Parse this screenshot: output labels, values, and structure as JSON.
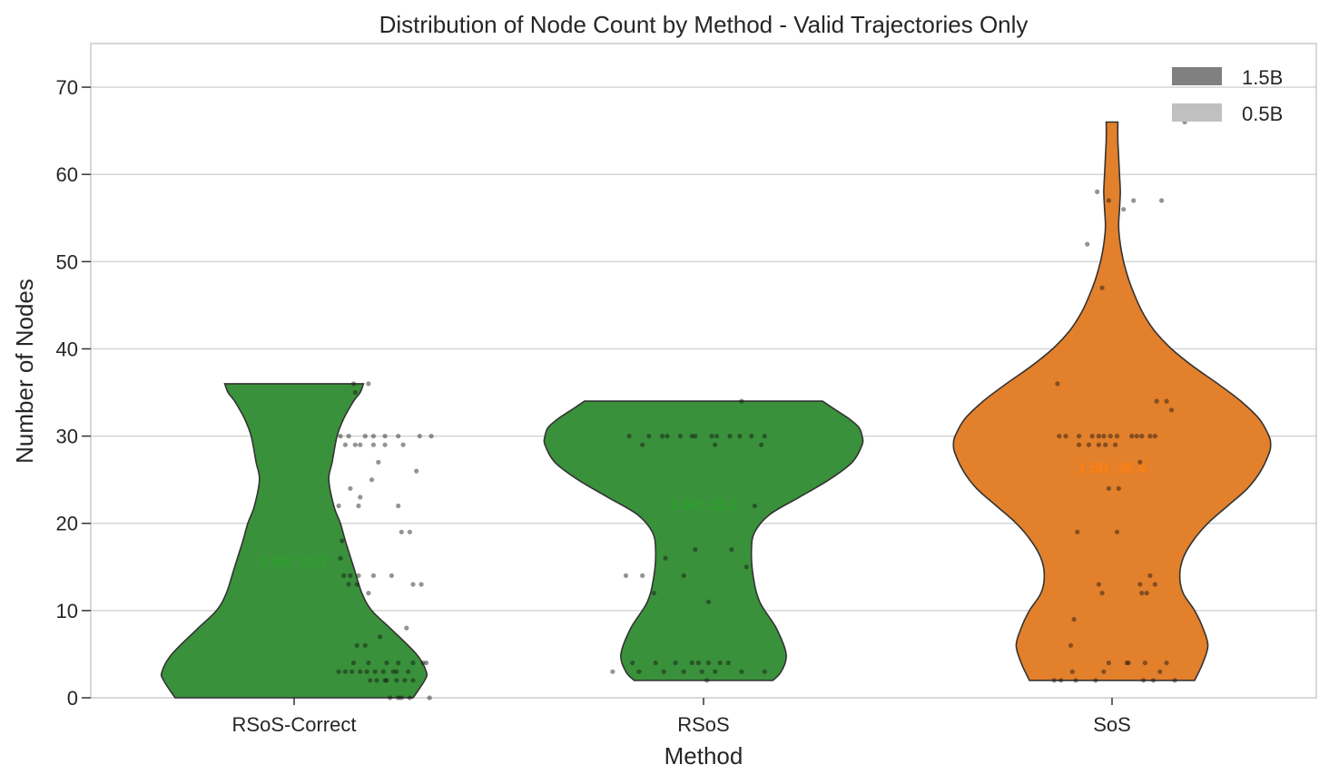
{
  "chart_data": {
    "type": "violin",
    "title": "Distribution of Node Count by Method - Valid Trajectories Only",
    "xlabel": "Method",
    "ylabel": "Number of Nodes",
    "ylim": [
      0,
      75
    ],
    "yticks": [
      0,
      10,
      20,
      30,
      40,
      50,
      60,
      70
    ],
    "grid": true,
    "legend": {
      "position": "top-right",
      "entries": [
        {
          "label": "1.5B",
          "color": "#808080"
        },
        {
          "label": "0.5B",
          "color": "#c0c0c0"
        }
      ]
    },
    "categories": [
      "RSoS-Correct",
      "RSoS",
      "SoS"
    ],
    "violins": [
      {
        "category": "RSoS-Correct",
        "model": "1.5B",
        "color": "#3a913b",
        "text_color": "#2ca02c",
        "mean_label": "1.5B: 15.7",
        "mean": 15.7,
        "min": 0,
        "max": 36,
        "density": [
          [
            0,
            0.72
          ],
          [
            2,
            0.79
          ],
          [
            3,
            0.8
          ],
          [
            5,
            0.74
          ],
          [
            8,
            0.58
          ],
          [
            10,
            0.47
          ],
          [
            12,
            0.41
          ],
          [
            15,
            0.36
          ],
          [
            18,
            0.31
          ],
          [
            20,
            0.28
          ],
          [
            22,
            0.24
          ],
          [
            25,
            0.21
          ],
          [
            27,
            0.23
          ],
          [
            30,
            0.26
          ],
          [
            32,
            0.3
          ],
          [
            34,
            0.36
          ],
          [
            35,
            0.4
          ],
          [
            36,
            0.42
          ]
        ],
        "points": [
          [
            0.36,
            36
          ],
          [
            0.37,
            35
          ],
          [
            0.45,
            36
          ],
          [
            0.28,
            30
          ],
          [
            0.33,
            30
          ],
          [
            0.43,
            30
          ],
          [
            0.48,
            30
          ],
          [
            0.55,
            30
          ],
          [
            0.63,
            30
          ],
          [
            0.76,
            30
          ],
          [
            0.83,
            30
          ],
          [
            0.31,
            29
          ],
          [
            0.37,
            29
          ],
          [
            0.4,
            29
          ],
          [
            0.48,
            29
          ],
          [
            0.55,
            29
          ],
          [
            0.66,
            29
          ],
          [
            0.51,
            27
          ],
          [
            0.74,
            26
          ],
          [
            0.47,
            25
          ],
          [
            0.34,
            24
          ],
          [
            0.4,
            23
          ],
          [
            0.27,
            22
          ],
          [
            0.39,
            22
          ],
          [
            0.63,
            22
          ],
          [
            0.65,
            19
          ],
          [
            0.7,
            19
          ],
          [
            0.29,
            18
          ],
          [
            0.28,
            16
          ],
          [
            0.3,
            14
          ],
          [
            0.34,
            14
          ],
          [
            0.39,
            14
          ],
          [
            0.48,
            14
          ],
          [
            0.59,
            14
          ],
          [
            0.33,
            13
          ],
          [
            0.38,
            13
          ],
          [
            0.72,
            13
          ],
          [
            0.77,
            13
          ],
          [
            0.45,
            12
          ],
          [
            0.68,
            8
          ],
          [
            0.52,
            7
          ],
          [
            0.38,
            6
          ],
          [
            0.43,
            6
          ],
          [
            0.27,
            3
          ],
          [
            0.31,
            3
          ],
          [
            0.35,
            3
          ],
          [
            0.4,
            3
          ],
          [
            0.44,
            3
          ],
          [
            0.49,
            3
          ],
          [
            0.54,
            3
          ],
          [
            0.62,
            3
          ],
          [
            0.69,
            3
          ],
          [
            0.36,
            4
          ],
          [
            0.45,
            4
          ],
          [
            0.56,
            4
          ],
          [
            0.63,
            4
          ],
          [
            0.72,
            4
          ],
          [
            0.8,
            4
          ],
          [
            0.46,
            2
          ],
          [
            0.5,
            2
          ],
          [
            0.56,
            2
          ],
          [
            0.62,
            2
          ],
          [
            0.67,
            2
          ],
          [
            0.72,
            2
          ],
          [
            0.58,
            0
          ],
          [
            0.63,
            0
          ],
          [
            0.65,
            0
          ],
          [
            0.7,
            0
          ],
          [
            0.82,
            0
          ],
          [
            0.78,
            4
          ],
          [
            0.55,
            2
          ],
          [
            0.6,
            3
          ]
        ]
      },
      {
        "category": "RSoS",
        "model": "1.5B",
        "color": "#3a913b",
        "text_color": "#2ca02c",
        "mean_label": "1.5B: 22.2",
        "mean": 22.2,
        "min": 2,
        "max": 34,
        "density": [
          [
            2,
            0.42
          ],
          [
            3,
            0.47
          ],
          [
            5,
            0.5
          ],
          [
            8,
            0.44
          ],
          [
            11,
            0.34
          ],
          [
            14,
            0.3
          ],
          [
            17,
            0.29
          ],
          [
            19,
            0.31
          ],
          [
            21,
            0.4
          ],
          [
            23,
            0.58
          ],
          [
            25,
            0.76
          ],
          [
            27,
            0.9
          ],
          [
            29,
            0.96
          ],
          [
            30,
            0.96
          ],
          [
            31,
            0.94
          ],
          [
            32,
            0.88
          ],
          [
            33,
            0.8
          ],
          [
            34,
            0.72
          ]
        ],
        "points": [
          [
            -0.45,
            30
          ],
          [
            -0.33,
            30
          ],
          [
            -0.25,
            30
          ],
          [
            -0.22,
            30
          ],
          [
            -0.14,
            30
          ],
          [
            -0.07,
            30
          ],
          [
            -0.05,
            30
          ],
          [
            0.05,
            30
          ],
          [
            0.08,
            30
          ],
          [
            0.16,
            30
          ],
          [
            0.22,
            30
          ],
          [
            0.29,
            30
          ],
          [
            0.37,
            30
          ],
          [
            -0.37,
            29
          ],
          [
            0.07,
            29
          ],
          [
            0.35,
            29
          ],
          [
            0.23,
            34
          ],
          [
            0.31,
            22
          ],
          [
            -0.05,
            17
          ],
          [
            0.17,
            17
          ],
          [
            -0.23,
            16
          ],
          [
            0.26,
            15
          ],
          [
            -0.47,
            14
          ],
          [
            -0.37,
            14
          ],
          [
            -0.12,
            14
          ],
          [
            -0.3,
            12
          ],
          [
            0.03,
            11
          ],
          [
            -0.43,
            4
          ],
          [
            -0.29,
            4
          ],
          [
            -0.17,
            4
          ],
          [
            -0.07,
            4
          ],
          [
            -0.03,
            4
          ],
          [
            0.03,
            4
          ],
          [
            0.15,
            4
          ],
          [
            -0.39,
            3
          ],
          [
            -0.24,
            3
          ],
          [
            -0.12,
            3
          ],
          [
            -0.01,
            3
          ],
          [
            0.07,
            3
          ],
          [
            0.23,
            3
          ],
          [
            0.37,
            3
          ],
          [
            0.02,
            2
          ],
          [
            -0.55,
            3
          ],
          [
            0.1,
            4
          ]
        ]
      },
      {
        "category": "SoS",
        "model": "1.5B",
        "color": "#e2802c",
        "text_color": "#ff7f0e",
        "mean_label": "1.5B: 26.4",
        "mean": 26.4,
        "min": 2,
        "max": 66,
        "density": [
          [
            2,
            0.5
          ],
          [
            4,
            0.55
          ],
          [
            6,
            0.58
          ],
          [
            8,
            0.55
          ],
          [
            10,
            0.5
          ],
          [
            12,
            0.43
          ],
          [
            14,
            0.41
          ],
          [
            16,
            0.43
          ],
          [
            18,
            0.49
          ],
          [
            20,
            0.58
          ],
          [
            22,
            0.7
          ],
          [
            24,
            0.82
          ],
          [
            26,
            0.9
          ],
          [
            28,
            0.95
          ],
          [
            29,
            0.96
          ],
          [
            30,
            0.95
          ],
          [
            32,
            0.89
          ],
          [
            34,
            0.78
          ],
          [
            36,
            0.64
          ],
          [
            38,
            0.49
          ],
          [
            40,
            0.36
          ],
          [
            42,
            0.26
          ],
          [
            44,
            0.19
          ],
          [
            46,
            0.14
          ],
          [
            48,
            0.1
          ],
          [
            50,
            0.07
          ],
          [
            52,
            0.05
          ],
          [
            54,
            0.04
          ],
          [
            56,
            0.045
          ],
          [
            58,
            0.05
          ],
          [
            60,
            0.045
          ],
          [
            62,
            0.04
          ],
          [
            64,
            0.035
          ],
          [
            66,
            0.035
          ]
        ],
        "points": [
          [
            0.44,
            66
          ],
          [
            -0.09,
            58
          ],
          [
            -0.02,
            57
          ],
          [
            0.13,
            57
          ],
          [
            0.3,
            57
          ],
          [
            0.07,
            56
          ],
          [
            -0.15,
            52
          ],
          [
            -0.06,
            47
          ],
          [
            -0.33,
            36
          ],
          [
            0.27,
            34
          ],
          [
            0.33,
            34
          ],
          [
            0.36,
            33
          ],
          [
            -0.32,
            30
          ],
          [
            -0.28,
            30
          ],
          [
            -0.2,
            30
          ],
          [
            -0.12,
            30
          ],
          [
            -0.08,
            30
          ],
          [
            -0.05,
            30
          ],
          [
            -0.01,
            30
          ],
          [
            0.03,
            30
          ],
          [
            0.12,
            30
          ],
          [
            0.15,
            30
          ],
          [
            0.18,
            30
          ],
          [
            0.23,
            30
          ],
          [
            0.26,
            30
          ],
          [
            -0.2,
            29
          ],
          [
            -0.14,
            29
          ],
          [
            -0.08,
            29
          ],
          [
            -0.04,
            29
          ],
          [
            0.02,
            29
          ],
          [
            0.17,
            27
          ],
          [
            -0.02,
            24
          ],
          [
            0.04,
            24
          ],
          [
            -0.21,
            19
          ],
          [
            0.03,
            19
          ],
          [
            0.23,
            14
          ],
          [
            0.17,
            13
          ],
          [
            0.26,
            13
          ],
          [
            -0.08,
            13
          ],
          [
            -0.06,
            12
          ],
          [
            0.18,
            12
          ],
          [
            0.21,
            12
          ],
          [
            -0.23,
            9
          ],
          [
            -0.25,
            6
          ],
          [
            -0.02,
            4
          ],
          [
            0.09,
            4
          ],
          [
            0.2,
            4
          ],
          [
            0.33,
            4
          ],
          [
            -0.24,
            3
          ],
          [
            -0.05,
            3
          ],
          [
            0.29,
            3
          ],
          [
            -0.35,
            2
          ],
          [
            -0.31,
            2
          ],
          [
            -0.22,
            2
          ],
          [
            -0.1,
            2
          ],
          [
            0.19,
            2
          ],
          [
            0.25,
            2
          ],
          [
            0.38,
            2
          ],
          [
            0.1,
            4
          ]
        ]
      }
    ]
  }
}
